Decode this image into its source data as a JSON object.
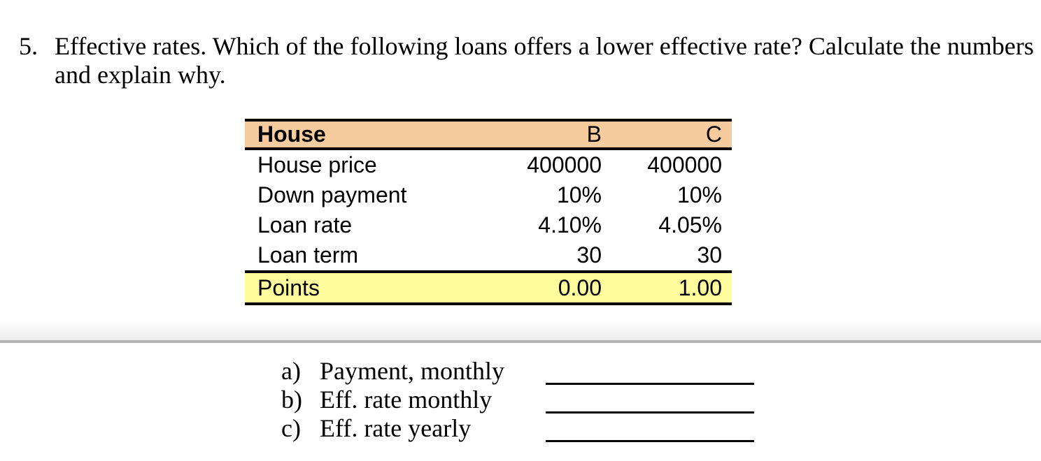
{
  "question": {
    "number": "5.",
    "line1": "Effective rates. Which of the following loans offers a lower effective rate? Calculate the numbers",
    "line2": "and explain why."
  },
  "loan_table": {
    "header": {
      "label": "House",
      "col_b": "B",
      "col_c": "C"
    },
    "rows": [
      {
        "label": "House price",
        "b": "400000",
        "c": "400000"
      },
      {
        "label": "Down payment",
        "b": "10%",
        "c": "10%"
      },
      {
        "label": "Loan rate",
        "b": "4.10%",
        "c": "4.05%"
      },
      {
        "label": "Loan term",
        "b": "30",
        "c": "30"
      }
    ],
    "footer": {
      "label": "Points",
      "b": "0.00",
      "c": "1.00"
    }
  },
  "answers": [
    {
      "letter": "a)",
      "label": "Payment, monthly"
    },
    {
      "letter": "b)",
      "label": "Eff. rate monthly"
    },
    {
      "letter": "c)",
      "label": "Eff. rate yearly"
    }
  ],
  "colors": {
    "table_header_fill": "#F6CB9E",
    "points_row_fill": "#FFFC9E",
    "table_border": "#000000",
    "page_divider": "#B3B3B3",
    "text": "#000000",
    "page_background": "#FFFFFF"
  }
}
